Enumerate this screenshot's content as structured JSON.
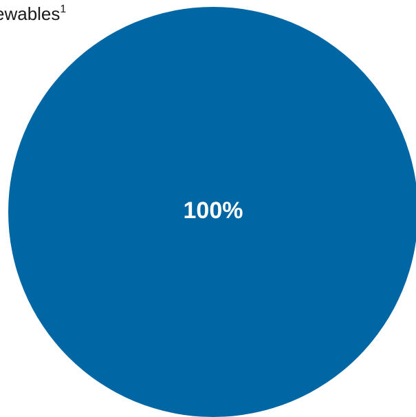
{
  "chart_data": {
    "type": "pie",
    "slices": [
      {
        "label": "ewables",
        "footnote": "1",
        "value": 100,
        "value_label": "100%",
        "color": "#0066a4"
      }
    ],
    "legend": "top-left",
    "label_color": "#ffffff"
  }
}
